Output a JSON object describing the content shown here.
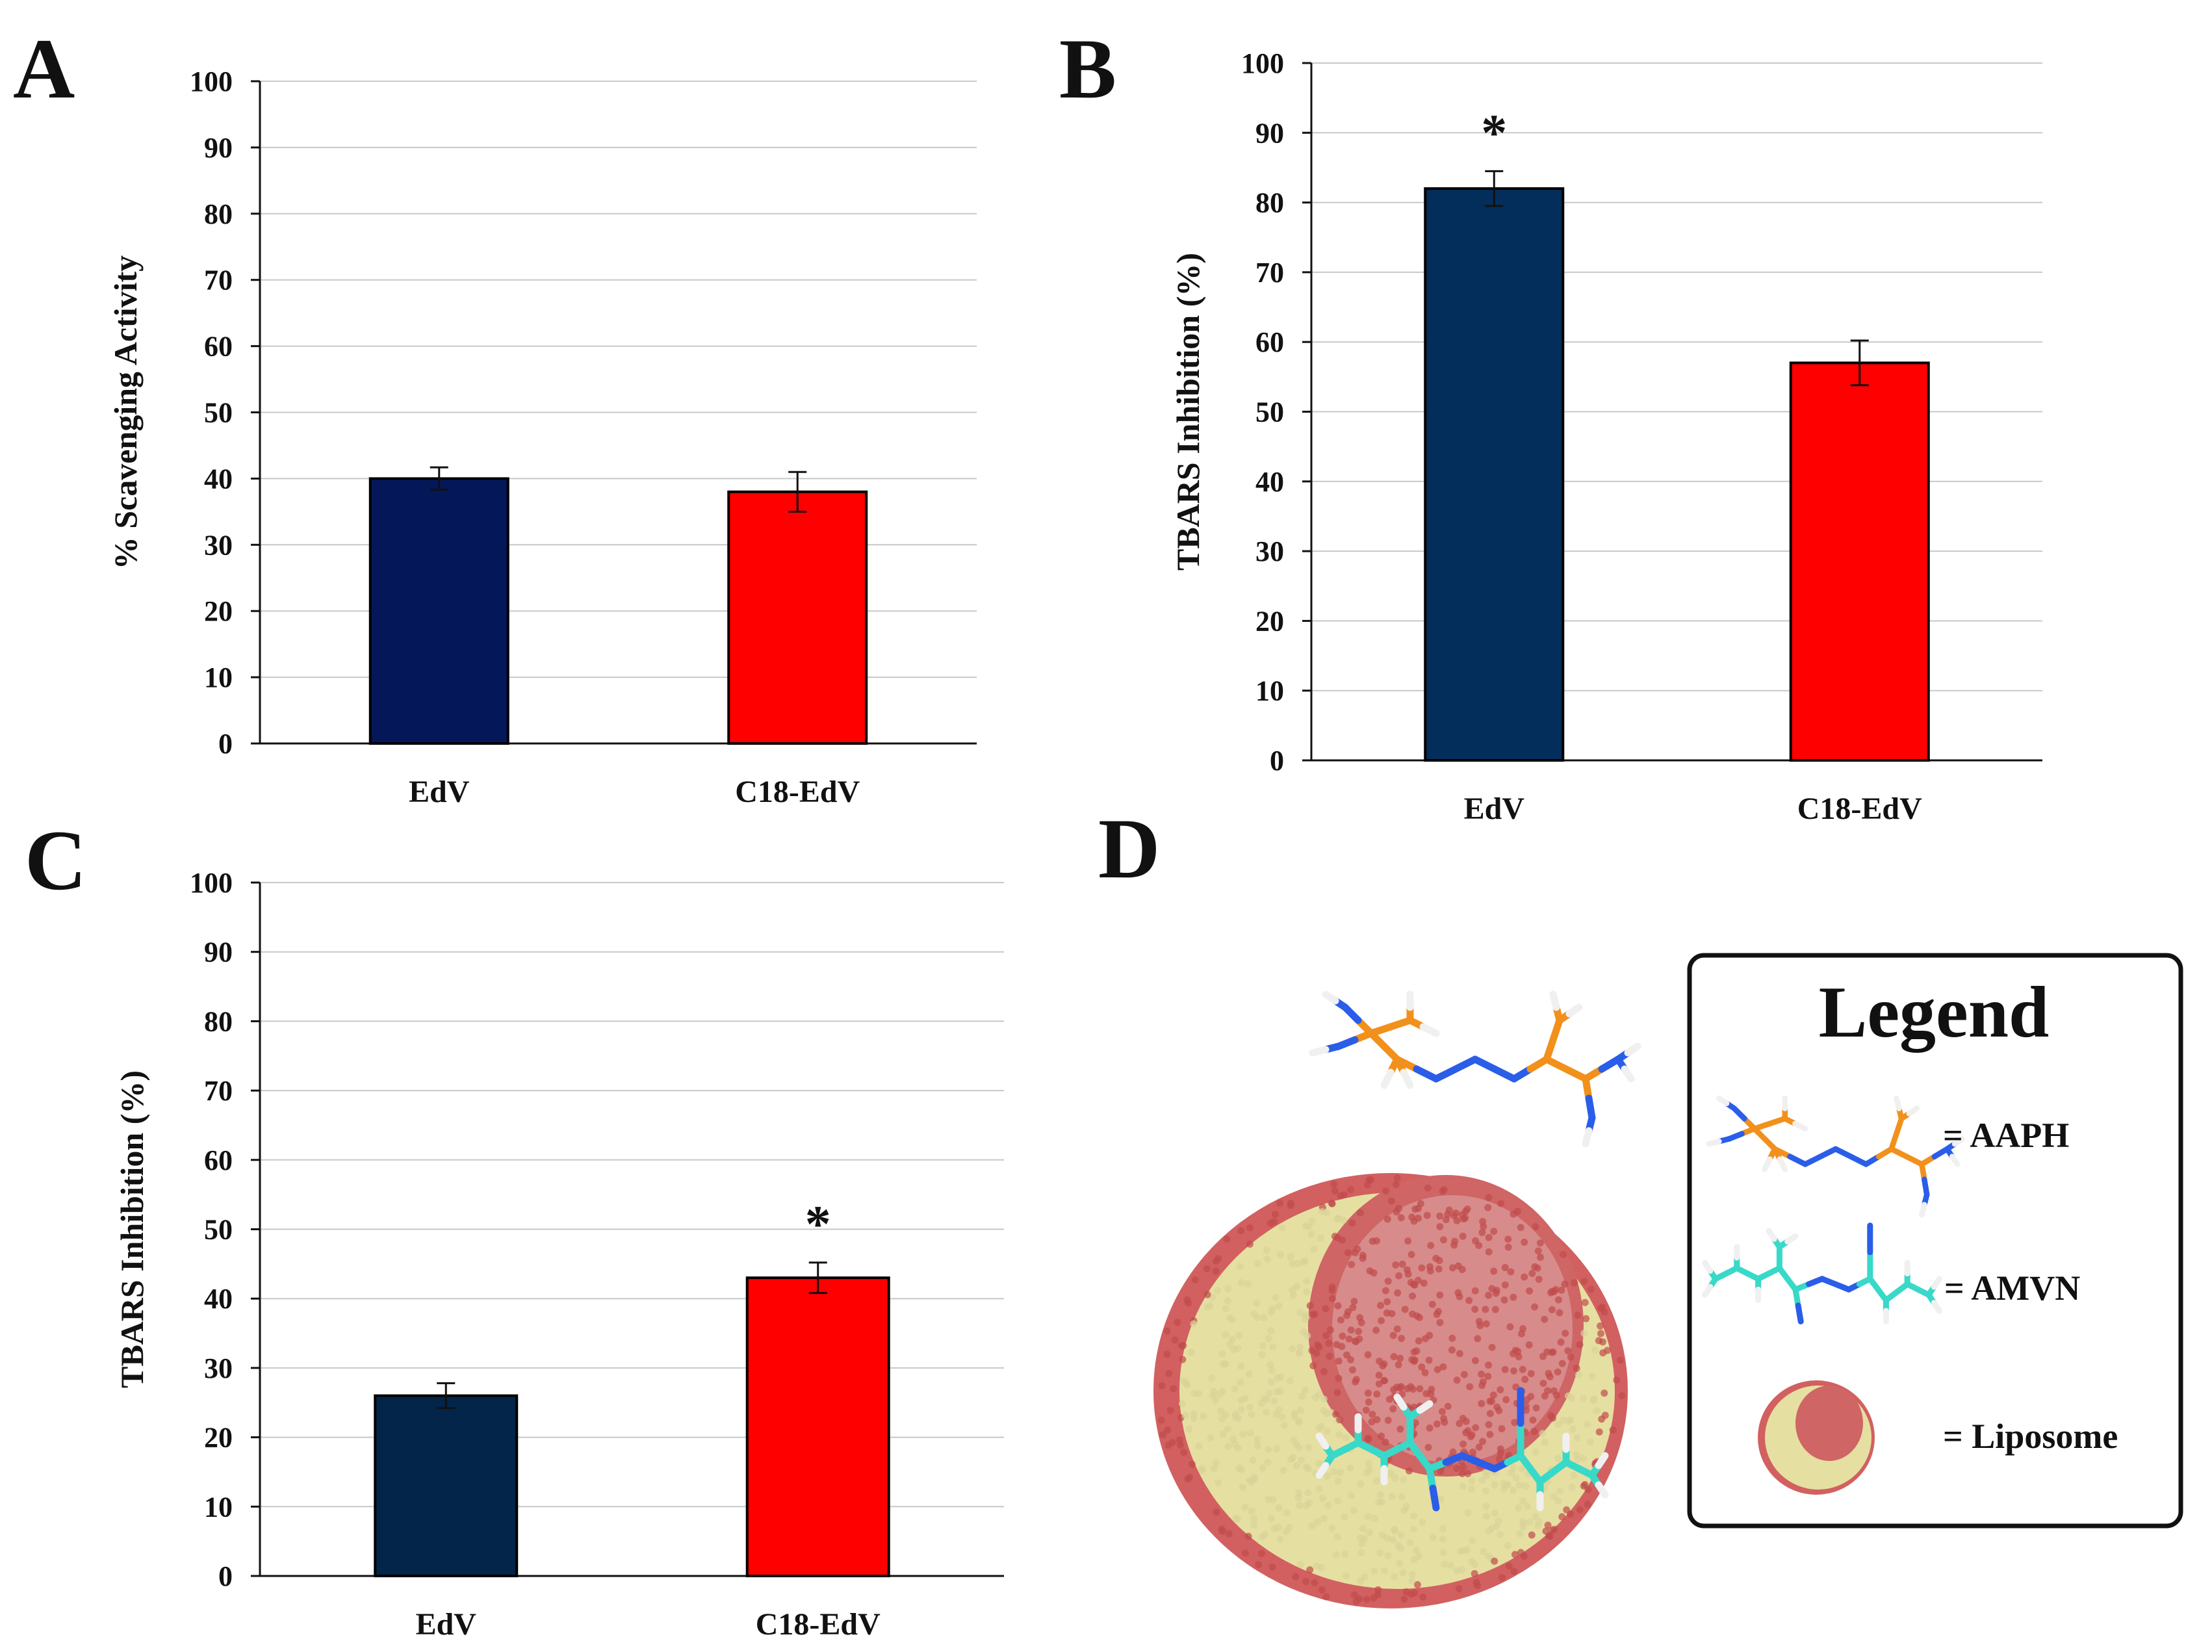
{
  "chart_data": [
    {
      "panel": "A",
      "type": "bar",
      "categories": [
        "EdV",
        "C18-EdV"
      ],
      "values": [
        40,
        38
      ],
      "errors": [
        1.7,
        3.0
      ],
      "colors": [
        "#041859",
        "#ff0000"
      ],
      "significance": [
        "",
        ""
      ],
      "ylabel": "% Scavenging Activity",
      "xlabel": "",
      "ylim": [
        0,
        100
      ],
      "yticks": [
        "0",
        "10",
        "20",
        "30",
        "40",
        "50",
        "60",
        "70",
        "80",
        "90",
        "100"
      ],
      "grid": true
    },
    {
      "panel": "B",
      "type": "bar",
      "categories": [
        "EdV",
        "C18-EdV"
      ],
      "values": [
        82,
        57
      ],
      "errors": [
        2.5,
        3.2
      ],
      "colors": [
        "#032e5b",
        "#ff0000"
      ],
      "significance": [
        "*",
        ""
      ],
      "ylabel": "TBARS Inhibition (%)",
      "xlabel": "",
      "ylim": [
        0,
        100
      ],
      "yticks": [
        "0",
        "10",
        "20",
        "30",
        "40",
        "50",
        "60",
        "70",
        "80",
        "90",
        "100"
      ],
      "grid": true
    },
    {
      "panel": "C",
      "type": "bar",
      "categories": [
        "EdV",
        "C18-EdV"
      ],
      "values": [
        26,
        43
      ],
      "errors": [
        1.8,
        2.2
      ],
      "colors": [
        "#032549",
        "#ff0000"
      ],
      "significance": [
        "",
        "*"
      ],
      "ylabel": "TBARS Inhibition (%)",
      "xlabel": "",
      "ylim": [
        0,
        100
      ],
      "yticks": [
        "0",
        "10",
        "20",
        "30",
        "40",
        "50",
        "60",
        "70",
        "80",
        "90",
        "100"
      ],
      "grid": true
    }
  ],
  "panel_d": {
    "letter": "D",
    "legend_title": "Legend",
    "entries": [
      {
        "label": "= AAPH"
      },
      {
        "label": "= AMVN"
      },
      {
        "label": "= Liposome"
      }
    ]
  },
  "colors": {
    "carbon_aaph": "#f2901c",
    "carbon_amvn": "#38d9c8",
    "nitrogen": "#2a5de8",
    "hydrogen": "#f0f0f0",
    "lipid_head": "#d26060",
    "lipid_tail": "#ece9b4"
  }
}
